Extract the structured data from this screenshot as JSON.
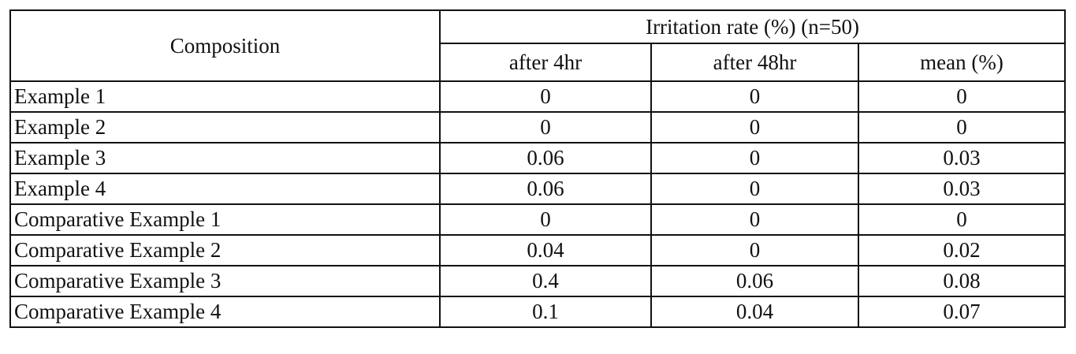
{
  "header": {
    "composition": "Composition",
    "group": "Irritation rate (%) (n=50)",
    "columns": [
      "after 4hr",
      "after 48hr",
      "mean (%)"
    ]
  },
  "table": {
    "rows": [
      [
        "Example 1",
        0,
        0,
        0
      ],
      [
        "Example 2",
        0,
        0,
        0
      ],
      [
        "Example 3",
        0.06,
        0,
        0.03
      ],
      [
        "Example 4",
        0.06,
        0,
        0.03
      ],
      [
        "Comparative Example 1",
        0,
        0,
        0
      ],
      [
        "Comparative Example 2",
        0.04,
        0,
        0.02
      ],
      [
        "Comparative Example 3",
        0.4,
        0.06,
        0.08
      ],
      [
        "Comparative Example 4",
        0.1,
        0.04,
        0.07
      ]
    ]
  }
}
